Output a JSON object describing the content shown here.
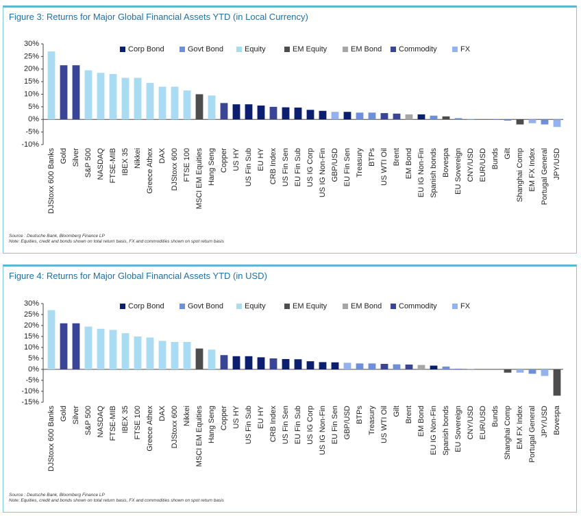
{
  "chart_data": [
    {
      "type": "bar",
      "title": "Figure 3: Returns for Major Global Financial Assets YTD (in Local Currency)",
      "source": "Source : Deutsche Bank, Bloomberg Finance LP",
      "note": "Note: Equities, credit and bonds shown on total return basis, FX and commodities shown on spot return basis",
      "categories": [
        "DJStoxx 600 Banks",
        "Gold",
        "Silver",
        "S&P 500",
        "NASDAQ",
        "FTSE-MIB",
        "IBEX 35",
        "Nikkei",
        "Greece Athex",
        "DAX",
        "DJStoxx 600",
        "FTSE 100",
        "MSCI EM Equities",
        "Hang Seng",
        "Copper",
        "US HY",
        "US Fin Sub",
        "EU HY",
        "CRB Index",
        "US Fin Sen",
        "EU Fin Sub",
        "US IG Corp",
        "US IG Non-Fin",
        "GBP/USD",
        "EU Fin Sen",
        "Treasury",
        "BTPs",
        "US WTI Oil",
        "Brent",
        "EM Bond",
        "EU IG Non-Fin",
        "Spanish bonds",
        "Bovespa",
        "EU Sovereign",
        "CNY/USD",
        "EUR/USD",
        "Bunds",
        "Gilt",
        "Shanghai Comp",
        "EM FX Index",
        "Portugal General",
        "JPY/USD"
      ],
      "series": [
        {
          "name": "Corp Bond",
          "color": "#0b1f6e",
          "values": [
            null,
            null,
            null,
            null,
            null,
            null,
            null,
            null,
            null,
            null,
            null,
            null,
            null,
            null,
            null,
            6,
            6,
            5.5,
            null,
            4.8,
            4.7,
            3.8,
            3.4,
            null,
            3,
            null,
            null,
            null,
            null,
            null,
            2,
            null,
            null,
            null,
            null,
            null,
            null,
            null,
            null,
            null,
            null,
            null
          ]
        },
        {
          "name": "Govt Bond",
          "color": "#6f8fd8",
          "values": [
            null,
            null,
            null,
            null,
            null,
            null,
            null,
            null,
            null,
            null,
            null,
            null,
            null,
            null,
            null,
            null,
            null,
            null,
            null,
            null,
            null,
            null,
            null,
            null,
            null,
            2.7,
            2.7,
            null,
            null,
            null,
            null,
            1.5,
            null,
            0.5,
            null,
            null,
            -0.2,
            -0.5,
            null,
            null,
            -2,
            null
          ]
        },
        {
          "name": "Equity",
          "color": "#a9dbf2",
          "values": [
            27,
            null,
            null,
            19.5,
            18.5,
            18,
            16.5,
            16.5,
            14.5,
            13,
            13,
            11.5,
            null,
            9.5,
            null,
            null,
            null,
            null,
            null,
            null,
            null,
            null,
            null,
            null,
            null,
            null,
            null,
            null,
            null,
            null,
            null,
            null,
            null,
            null,
            null,
            null,
            null,
            null,
            null,
            null,
            null,
            null
          ]
        },
        {
          "name": "EM Equity",
          "color": "#4d4d4d",
          "values": [
            null,
            null,
            null,
            null,
            null,
            null,
            null,
            null,
            null,
            null,
            null,
            null,
            10,
            null,
            null,
            null,
            null,
            null,
            null,
            null,
            null,
            null,
            null,
            null,
            null,
            null,
            null,
            null,
            null,
            null,
            null,
            null,
            1.2,
            null,
            null,
            null,
            null,
            null,
            -2,
            null,
            null,
            null
          ]
        },
        {
          "name": "EM Bond",
          "color": "#a6a6a6",
          "values": [
            null,
            null,
            null,
            null,
            null,
            null,
            null,
            null,
            null,
            null,
            null,
            null,
            null,
            null,
            null,
            null,
            null,
            null,
            null,
            null,
            null,
            null,
            null,
            null,
            null,
            null,
            null,
            null,
            null,
            2,
            null,
            null,
            null,
            null,
            null,
            null,
            null,
            null,
            null,
            null,
            null,
            null
          ]
        },
        {
          "name": "Commodity",
          "color": "#3a4596",
          "values": [
            null,
            21.5,
            21.5,
            null,
            null,
            null,
            null,
            null,
            null,
            null,
            null,
            null,
            null,
            null,
            6.5,
            null,
            null,
            null,
            5,
            null,
            null,
            null,
            null,
            null,
            null,
            null,
            null,
            2.5,
            2.3,
            null,
            null,
            null,
            null,
            null,
            null,
            null,
            null,
            null,
            null,
            null,
            null,
            null
          ]
        },
        {
          "name": "FX",
          "color": "#93b2ee",
          "values": [
            null,
            null,
            null,
            null,
            null,
            null,
            null,
            null,
            null,
            null,
            null,
            null,
            null,
            null,
            null,
            null,
            null,
            null,
            null,
            null,
            null,
            null,
            null,
            3,
            null,
            null,
            null,
            null,
            null,
            null,
            null,
            null,
            null,
            null,
            0.2,
            0,
            null,
            null,
            null,
            -1.5,
            null,
            -3
          ]
        }
      ],
      "ylim": [
        -10,
        30
      ],
      "yticks": [
        {
          "value": 30,
          "label": "30%"
        },
        {
          "value": 25,
          "label": "25%"
        },
        {
          "value": 20,
          "label": "20%"
        },
        {
          "value": 15,
          "label": "15%"
        },
        {
          "value": 10,
          "label": "10%"
        },
        {
          "value": 5,
          "label": "5%"
        },
        {
          "value": 0,
          "label": "0%"
        },
        {
          "value": -5,
          "label": "-5%"
        },
        {
          "value": -10,
          "label": "-10%"
        }
      ],
      "grid": false,
      "legend": "top"
    },
    {
      "type": "bar",
      "title": "Figure 4: Returns for Major Global Financial Assets YTD (in USD)",
      "source": "Source : Deutsche Bank, Bloomberg Finance LP",
      "note": "Note: Equities, credit and bonds shown on total return basis, FX and commodities shown on spot return basis",
      "categories": [
        "DJStoxx 600 Banks",
        "Gold",
        "Silver",
        "S&P 500",
        "NASDAQ",
        "FTSE-MIB",
        "IBEX 35",
        "FTSE 100",
        "Greece Athex",
        "DAX",
        "DJStoxx 600",
        "Nikkei",
        "MSCI EM Equities",
        "Hang Seng",
        "Copper",
        "US HY",
        "US Fin Sub",
        "EU HY",
        "CRB Index",
        "US Fin Sen",
        "EU Fin Sub",
        "US IG Corp",
        "US IG Non-Fin",
        "EU Fin Sen",
        "GBP/USD",
        "BTPs",
        "Treasury",
        "US WTI Oil",
        "Gilt",
        "Brent",
        "EM Bond",
        "EU IG Non-Fin",
        "Spanish bonds",
        "EU Sovereign",
        "CNY/USD",
        "EUR/USD",
        "Bunds",
        "Shanghai Comp",
        "EM FX Index",
        "Portugal General",
        "JPY/USD",
        "Bovespa"
      ],
      "series": [
        {
          "name": "Corp Bond",
          "color": "#0b1f6e",
          "values": [
            null,
            null,
            null,
            null,
            null,
            null,
            null,
            null,
            null,
            null,
            null,
            null,
            null,
            null,
            null,
            6,
            6,
            5.5,
            null,
            4.7,
            4.6,
            3.7,
            3.3,
            3.2,
            null,
            null,
            null,
            null,
            null,
            null,
            null,
            1.7,
            null,
            null,
            null,
            null,
            null,
            null,
            null,
            null,
            null,
            null
          ]
        },
        {
          "name": "Govt Bond",
          "color": "#6f8fd8",
          "values": [
            null,
            null,
            null,
            null,
            null,
            null,
            null,
            null,
            null,
            null,
            null,
            null,
            null,
            null,
            null,
            null,
            null,
            null,
            null,
            null,
            null,
            null,
            null,
            null,
            null,
            2.7,
            2.7,
            null,
            2.3,
            null,
            null,
            null,
            1.3,
            0.3,
            null,
            null,
            0,
            null,
            null,
            -2,
            null,
            null
          ]
        },
        {
          "name": "Equity",
          "color": "#a9dbf2",
          "values": [
            27,
            null,
            null,
            19.5,
            18.5,
            18,
            16.5,
            15,
            14.5,
            13,
            12.5,
            12.5,
            null,
            9,
            null,
            null,
            null,
            null,
            null,
            null,
            null,
            null,
            null,
            null,
            null,
            null,
            null,
            null,
            null,
            null,
            null,
            null,
            null,
            null,
            null,
            null,
            null,
            null,
            null,
            null,
            null,
            null
          ]
        },
        {
          "name": "EM Equity",
          "color": "#4d4d4d",
          "values": [
            null,
            null,
            null,
            null,
            null,
            null,
            null,
            null,
            null,
            null,
            null,
            null,
            9.5,
            null,
            null,
            null,
            null,
            null,
            null,
            null,
            null,
            null,
            null,
            null,
            null,
            null,
            null,
            null,
            null,
            null,
            null,
            null,
            null,
            null,
            null,
            null,
            null,
            -1.5,
            null,
            null,
            null,
            -12
          ]
        },
        {
          "name": "EM Bond",
          "color": "#a6a6a6",
          "values": [
            null,
            null,
            null,
            null,
            null,
            null,
            null,
            null,
            null,
            null,
            null,
            null,
            null,
            null,
            null,
            null,
            null,
            null,
            null,
            null,
            null,
            null,
            null,
            null,
            null,
            null,
            null,
            null,
            null,
            null,
            2,
            null,
            null,
            null,
            null,
            null,
            null,
            null,
            null,
            null,
            null,
            null
          ]
        },
        {
          "name": "Commodity",
          "color": "#3a4596",
          "values": [
            null,
            21,
            21,
            null,
            null,
            null,
            null,
            null,
            null,
            null,
            null,
            null,
            null,
            null,
            6.5,
            null,
            null,
            null,
            5,
            null,
            null,
            null,
            null,
            null,
            null,
            null,
            null,
            2.5,
            null,
            2.2,
            null,
            null,
            null,
            null,
            null,
            null,
            null,
            null,
            null,
            null,
            null,
            null
          ]
        },
        {
          "name": "FX",
          "color": "#93b2ee",
          "values": [
            null,
            null,
            null,
            null,
            null,
            null,
            null,
            null,
            null,
            null,
            null,
            null,
            null,
            null,
            null,
            null,
            null,
            null,
            null,
            null,
            null,
            null,
            null,
            null,
            3,
            null,
            null,
            null,
            null,
            null,
            null,
            null,
            null,
            null,
            0.1,
            0,
            null,
            null,
            -1.5,
            null,
            -3,
            null
          ]
        }
      ],
      "ylim": [
        -15,
        30
      ],
      "yticks": [
        {
          "value": 30,
          "label": "30%"
        },
        {
          "value": 25,
          "label": "25%"
        },
        {
          "value": 20,
          "label": "20%"
        },
        {
          "value": 15,
          "label": "15%"
        },
        {
          "value": 10,
          "label": "10%"
        },
        {
          "value": 5,
          "label": "5%"
        },
        {
          "value": 0,
          "label": "0%"
        },
        {
          "value": -5,
          "label": "-5%"
        },
        {
          "value": -10,
          "label": "-10%"
        },
        {
          "value": -15,
          "label": "-15%"
        }
      ],
      "grid": false,
      "legend": "top"
    }
  ]
}
